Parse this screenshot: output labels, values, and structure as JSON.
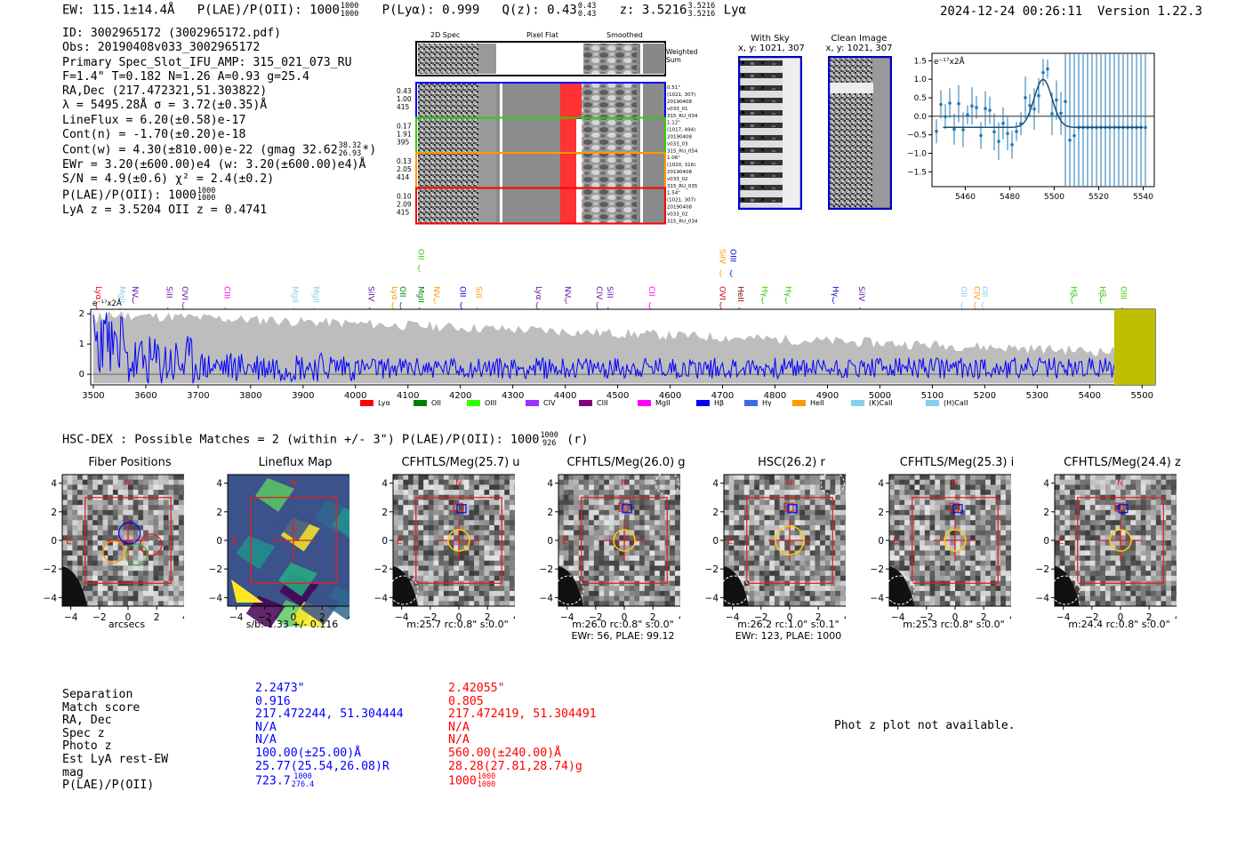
{
  "header": {
    "ew": "EW: 115.1±14.4Å",
    "plae_label": "P(LAE)/P(OII): 1000",
    "plae_hi": "1000",
    "plae_lo": "1000",
    "plya": "P(Lyα): 0.999",
    "qz_label": "Q(z): 0.43",
    "qz_hi": "0.43",
    "qz_lo": "0.43",
    "z_label": "z: 3.5216",
    "z_hi": "3.5216",
    "z_lo": "3.5216",
    "z_line": "Lyα",
    "datetime": "2024-12-24 00:26:11",
    "version": "Version 1.22.3"
  },
  "info": {
    "id": "ID: 3002965172 (3002965172.pdf)",
    "obs": "Obs: 20190408v033_3002965172",
    "primary": "Primary Spec_Slot_IFU_AMP: 315_021_073_RU",
    "fwhm": "F=1.4\"  T=0.182  N=1.26  A=0.93  g=25.4",
    "radec": "RA,Dec (217.472321,51.303822)",
    "lambda": "λ = 5495.28Å  σ = 3.72(±0.35)Å",
    "lineflux": "LineFlux = 6.20(±0.58)e-17",
    "contn": "Cont(n) = -1.70(±0.20)e-18",
    "contw": "Cont(w) = 4.30(±810.00)e-22 (gmag 32.62",
    "contw_hi": "38.32",
    "contw_lo": "26.93",
    "contw_tail": "*)",
    "ewr": "EWr = 3.20(±600.00)e4 (w: 3.20(±600.00)e4)Å",
    "sn": "S/N = 4.9(±0.6)  χ² = 2.4(±0.2)",
    "plae": "P(LAE)/P(OII): 1000",
    "plae_hi": "1000",
    "plae_lo": "1000",
    "lyaz": "LyA z = 3.5204  OII z = 0.4741"
  },
  "cutouts": {
    "col_2d": "2D Spec",
    "col_flat": "Pixel Flat",
    "col_smooth": "Smoothed",
    "weighted": "Weighted Sum",
    "rows": [
      {
        "n1": "0.43",
        "n2": "1.00",
        "n3": "415",
        "r1": "0.51\"",
        "r2": "(1021, 307)",
        "r3": "20190408",
        "r4": "v033_01",
        "r5": "315_RU_034",
        "color": "#0000ff"
      },
      {
        "n1": "0.17",
        "n2": "1.91",
        "n3": "395",
        "r1": "1.12\"",
        "r2": "(1017, 494)",
        "r3": "20190408",
        "r4": "v033_03",
        "r5": "315_RU_054",
        "color": "#33cc00"
      },
      {
        "n1": "0.13",
        "n2": "2.05",
        "n3": "414",
        "r1": "1.06\"",
        "r2": "(1020, 316)",
        "r3": "20190408",
        "r4": "v033_02",
        "r5": "315_RU_035",
        "color": "#ff9900"
      },
      {
        "n1": "0.10",
        "n2": "2.09",
        "n3": "415",
        "r1": "1.54\"",
        "r2": "(1021, 307)",
        "r3": "20190408",
        "r4": "v033_02",
        "r5": "315_RU_034",
        "color": "#ff0000"
      }
    ],
    "with_sky": "With Sky",
    "with_sky_xy": "x, y: 1021, 307",
    "clean": "Clean Image",
    "clean_xy": "x, y: 1021, 307"
  },
  "zoom_plot": {
    "unit": "e⁻¹⁷x2Å",
    "yticks": [
      "1.5",
      "1.0",
      "0.5",
      "0.0",
      "−0.5",
      "−1.0",
      "−1.5"
    ],
    "xticks": [
      "5460",
      "5480",
      "5500",
      "5520",
      "5540"
    ]
  },
  "full_spec": {
    "unit": "e⁻¹⁷x2Å",
    "yticks": [
      "2",
      "1",
      "0"
    ],
    "xticks": [
      "3500",
      "3600",
      "3700",
      "3800",
      "3900",
      "4000",
      "4100",
      "4200",
      "4300",
      "4400",
      "4500",
      "4600",
      "4700",
      "4800",
      "4900",
      "5000",
      "5100",
      "5200",
      "5300",
      "5400",
      "5500"
    ],
    "lines": [
      {
        "t": "Lyα",
        "c": "#ff0000",
        "row": 0
      },
      {
        "t": "MgII",
        "c": "#87ceeb",
        "row": 0
      },
      {
        "t": "NV",
        "c": "#6a0dad",
        "row": 0
      },
      {
        "t": "SiII",
        "c": "#6a0dad",
        "row": 0
      },
      {
        "t": "OVI",
        "c": "#6a0dad",
        "row": 0
      },
      {
        "t": "CIII",
        "c": "#ff00ff",
        "row": 0
      },
      {
        "t": "MgII",
        "c": "#87ceeb",
        "row": 0
      },
      {
        "t": "MgII",
        "c": "#87ceeb",
        "row": 0
      },
      {
        "t": "SiIV",
        "c": "#6a0dad",
        "row": 0
      },
      {
        "t": "Lyα",
        "c": "#ff9900",
        "row": 0
      },
      {
        "t": "OII",
        "c": "#008000",
        "row": 0
      },
      {
        "t": "MgII",
        "c": "#008000",
        "row": 0
      },
      {
        "t": "OII",
        "c": "#33cc00",
        "row": 1
      },
      {
        "t": "NV",
        "c": "#ff9900",
        "row": 0
      },
      {
        "t": "OII",
        "c": "#0000cc",
        "row": 0
      },
      {
        "t": "SiII",
        "c": "#ff9900",
        "row": 0
      },
      {
        "t": "Lyα",
        "c": "#6a0dad",
        "row": 0
      },
      {
        "t": "NV",
        "c": "#6a0dad",
        "row": 0
      },
      {
        "t": "CIV",
        "c": "#6a0dad",
        "row": 0
      },
      {
        "t": "SiII",
        "c": "#6a0dad",
        "row": 0
      },
      {
        "t": "CII",
        "c": "#ff00ff",
        "row": 0
      },
      {
        "t": "SiIV",
        "c": "#ff9900",
        "row": 1
      },
      {
        "t": "OIII",
        "c": "#0000cc",
        "row": 1
      },
      {
        "t": "OVI",
        "c": "#cc0000",
        "row": 0
      },
      {
        "t": "HeII",
        "c": "#800000",
        "row": 0
      },
      {
        "t": "Hγ",
        "c": "#33cc00",
        "row": 0
      },
      {
        "t": "Hγ",
        "c": "#33cc00",
        "row": 0
      },
      {
        "t": "Hγ",
        "c": "#0000cc",
        "row": 0
      },
      {
        "t": "SiIV",
        "c": "#6a0dad",
        "row": 0
      },
      {
        "t": "OII",
        "c": "#87ceeb",
        "row": 0
      },
      {
        "t": "CIV",
        "c": "#ff9900",
        "row": 0
      },
      {
        "t": "OII",
        "c": "#87ceeb",
        "row": 0
      },
      {
        "t": "Hβ",
        "c": "#33cc00",
        "row": 0
      },
      {
        "t": "Hβ",
        "c": "#33cc00",
        "row": 0
      },
      {
        "t": "OIII",
        "c": "#33cc00",
        "row": 0
      }
    ],
    "legend": [
      {
        "t": "Lyα",
        "c": "#ff0000"
      },
      {
        "t": "OII",
        "c": "#008000"
      },
      {
        "t": "OIII",
        "c": "#33ff00"
      },
      {
        "t": "CIV",
        "c": "#9933ff"
      },
      {
        "t": "CIII",
        "c": "#800080"
      },
      {
        "t": "MgII",
        "c": "#ff00ff"
      },
      {
        "t": "Hβ",
        "c": "#0000ff"
      },
      {
        "t": "Hγ",
        "c": "#4169e1"
      },
      {
        "t": "HeII",
        "c": "#ff9900"
      },
      {
        "t": "(K)CaII",
        "c": "#87ceeb"
      },
      {
        "t": "(H)CaII",
        "c": "#87ceeb"
      }
    ]
  },
  "hsc": {
    "title": "HSC-DEX : Possible Matches = 2 (within +/- 3\")  P(LAE)/P(OII): 1000",
    "hi": "1000",
    "lo": "926",
    "tail": "(r)"
  },
  "panels": [
    {
      "title": "Fiber Positions",
      "sub1": "arcsecs",
      "sub2": ""
    },
    {
      "title": "Lineflux Map",
      "sub1": "s/b: 1.33 +/- 0.116",
      "sub2": ""
    },
    {
      "title": "CFHTLS/Meg(25.7) u",
      "sub1": "m:25.7 rc:0.8\"  s:0.0\"",
      "sub2": ""
    },
    {
      "title": "CFHTLS/Meg(26.0) g",
      "sub1": "m:26.0 rc:0.8\"  s:0.0\"",
      "sub2": "EWr: 56, PLAE: 99.12"
    },
    {
      "title": "HSC(26.2) r",
      "sub1": "m:26.2 rc:1.0\"  s:0.1\"",
      "sub2": "EWr: 123, PLAE: 1000"
    },
    {
      "title": "CFHTLS/Meg(25.3) i",
      "sub1": "m:25.3 rc:0.8\"  s:0.0\"",
      "sub2": ""
    },
    {
      "title": "CFHTLS/Meg(24.4) z",
      "sub1": "m:24.4 rc:0.8\"  s:0.0\"",
      "sub2": ""
    }
  ],
  "panel_axis": {
    "yticks": [
      "4",
      "2",
      "0",
      "−2",
      "−4"
    ],
    "xticks": [
      "−4",
      "−2",
      "0",
      "2",
      "4"
    ],
    "north": "N",
    "east": "E"
  },
  "matches": {
    "labels": [
      "Separation",
      "Match score",
      "RA, Dec",
      "Spec z",
      "Photo z",
      "Est LyA rest-EW",
      "mag",
      "P(LAE)/P(OII)"
    ],
    "m1": [
      "2.2473\"",
      "0.916",
      "217.472244, 51.304444",
      "N/A",
      "N/A",
      "100.00(±25.00)Å",
      "25.77(25.54,26.08)R",
      "723.7"
    ],
    "m1_hi": "1000",
    "m1_lo": "276.4",
    "m2": [
      "2.42055\"",
      "0.805",
      "217.472419, 51.304491",
      "N/A",
      "N/A",
      "560.00(±240.00)Å",
      "28.28(27.81,28.74)g",
      "1000"
    ],
    "m2_hi": "1000",
    "m2_lo": "1000",
    "photz": "Phot z plot not available."
  },
  "colors": {
    "blue": "#0000ff",
    "red": "#ff0000",
    "olive": "#bfbf00",
    "grey": "#bdbdbd"
  }
}
